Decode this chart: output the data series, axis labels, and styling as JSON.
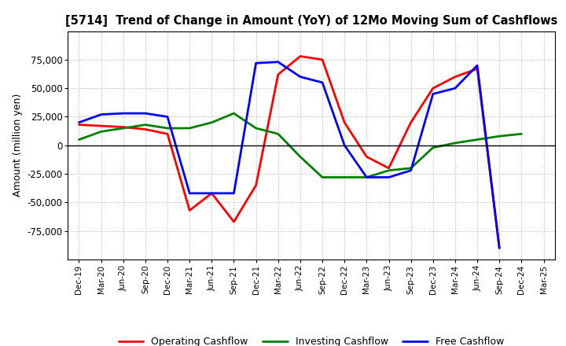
{
  "title": "[5714]  Trend of Change in Amount (YoY) of 12Mo Moving Sum of Cashflows",
  "ylabel": "Amount (million yen)",
  "background_color": "#ffffff",
  "plot_background_color": "#ffffff",
  "grid_color": "#b0b0b0",
  "x_labels": [
    "Dec-19",
    "Mar-20",
    "Jun-20",
    "Sep-20",
    "Dec-20",
    "Mar-21",
    "Jun-21",
    "Sep-21",
    "Dec-21",
    "Mar-22",
    "Jun-22",
    "Sep-22",
    "Dec-22",
    "Mar-23",
    "Jun-23",
    "Sep-23",
    "Dec-23",
    "Mar-24",
    "Jun-24",
    "Sep-24",
    "Dec-24",
    "Mar-25"
  ],
  "operating_cashflow": [
    18000,
    17000,
    16000,
    14000,
    10000,
    -57000,
    -42000,
    -67000,
    -35000,
    62000,
    78000,
    75000,
    20000,
    -10000,
    -20000,
    20000,
    50000,
    60000,
    67000,
    -90000,
    null,
    null
  ],
  "investing_cashflow": [
    5000,
    12000,
    15000,
    18000,
    15000,
    15000,
    20000,
    28000,
    15000,
    10000,
    -10000,
    -28000,
    -28000,
    -28000,
    -22000,
    -20000,
    -2000,
    2000,
    5000,
    8000,
    10000,
    null
  ],
  "free_cashflow": [
    20000,
    27000,
    28000,
    28000,
    25000,
    -42000,
    -42000,
    -42000,
    72000,
    73000,
    60000,
    55000,
    0,
    -28000,
    -28000,
    -22000,
    45000,
    50000,
    70000,
    -90000,
    null,
    null
  ],
  "line_width": 2.0,
  "ylim": [
    -100000,
    100000
  ],
  "yticks": [
    -75000,
    -50000,
    -25000,
    0,
    25000,
    50000,
    75000
  ],
  "colors": {
    "operating": "#ff0000",
    "investing": "#008000",
    "free": "#0000ff"
  },
  "legend_labels": [
    "Operating Cashflow",
    "Investing Cashflow",
    "Free Cashflow"
  ]
}
